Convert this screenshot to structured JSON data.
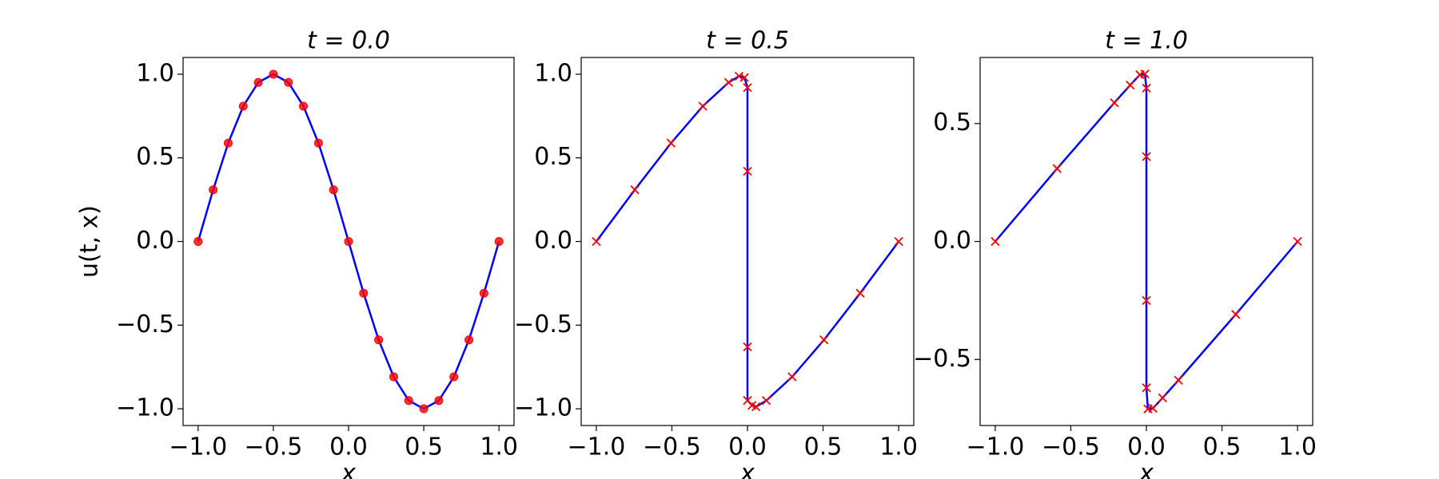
{
  "chart_data": [
    {
      "type": "line",
      "title": "t = 0.0",
      "ylabel": "u(t, x)",
      "xlabel": "x",
      "x": [
        -1,
        -0.9,
        -0.8,
        -0.7,
        -0.6,
        -0.5,
        -0.4,
        -0.3,
        -0.2,
        -0.1,
        0,
        0.1,
        0.2,
        0.3,
        0.4,
        0.5,
        0.6,
        0.7,
        0.8,
        0.9,
        1
      ],
      "series": [
        {
          "color": "#0000ff",
          "values": [
            0,
            0.309,
            0.588,
            0.809,
            0.951,
            1,
            0.951,
            0.809,
            0.588,
            0.309,
            0,
            -0.309,
            -0.588,
            -0.809,
            -0.951,
            -1,
            -0.951,
            -0.809,
            -0.588,
            -0.309,
            0
          ]
        },
        {
          "color": "#ff0000",
          "marker": "o",
          "values": [
            0,
            0.309,
            0.588,
            0.809,
            0.951,
            1,
            0.951,
            0.809,
            0.588,
            0.309,
            0,
            -0.309,
            -0.588,
            -0.809,
            -0.951,
            -1,
            -0.951,
            -0.809,
            -0.588,
            -0.309,
            0
          ]
        }
      ],
      "xlim": [
        -1.1,
        1.1
      ],
      "ylim": [
        -1.1,
        1.1
      ],
      "xticks": [
        {
          "value": -1,
          "label": "−1.0"
        },
        {
          "value": -0.5,
          "label": "−0.5"
        },
        {
          "value": 0,
          "label": "0.0"
        },
        0.5,
        {
          "value": 1,
          "label": "1.0"
        }
      ],
      "yticks": [
        {
          "value": -1,
          "label": "−1.0"
        },
        {
          "value": -0.5,
          "label": "−0.5"
        },
        {
          "value": 0,
          "label": "0.0"
        },
        0.5,
        {
          "value": 1,
          "label": "1.0"
        }
      ]
    },
    {
      "type": "line",
      "title": "t = 0.5",
      "xlabel": "x",
      "x": [
        -1,
        -0.7455,
        -0.506,
        -0.2955,
        -0.1245,
        -0.056,
        -0.02,
        0,
        0,
        0,
        0,
        0.03,
        0.056,
        0.1245,
        0.2955,
        0.506,
        0.7455,
        1
      ],
      "series": [
        {
          "color": "#0000ff",
          "values": [
            0,
            0.309,
            0.588,
            0.809,
            0.951,
            0.988,
            0.98,
            0.92,
            0.42,
            -0.63,
            -0.95,
            -0.98,
            -0.988,
            -0.951,
            -0.809,
            -0.588,
            -0.309,
            0
          ]
        },
        {
          "color": "#ff0000",
          "marker": "x",
          "values": [
            0,
            0.309,
            0.588,
            0.809,
            0.951,
            0.988,
            0.98,
            0.92,
            0.42,
            -0.63,
            -0.95,
            -0.98,
            -0.988,
            -0.951,
            -0.809,
            -0.588,
            -0.309,
            0
          ]
        }
      ],
      "xlim": [
        -1.1,
        1.1
      ],
      "ylim": [
        -1.1,
        1.1
      ],
      "xticks": [
        {
          "value": -1,
          "label": "−1.0"
        },
        {
          "value": -0.5,
          "label": "−0.5"
        },
        {
          "value": 0,
          "label": "0.0"
        },
        0.5,
        {
          "value": 1,
          "label": "1.0"
        }
      ],
      "yticks": [
        {
          "value": -1,
          "label": "−1.0"
        },
        {
          "value": -0.5,
          "label": "−0.5"
        },
        {
          "value": 0,
          "label": "0.0"
        },
        0.5,
        {
          "value": 1,
          "label": "1.0"
        }
      ]
    },
    {
      "type": "line",
      "title": "t = 1.0",
      "xlabel": "x",
      "x": [
        -1,
        -0.591,
        -0.212,
        -0.107,
        -0.043,
        -0.01,
        0,
        0,
        0,
        0,
        0.01,
        0.043,
        0.107,
        0.212,
        0.591,
        1
      ],
      "series": [
        {
          "color": "#0000ff",
          "values": [
            0,
            0.309,
            0.588,
            0.663,
            0.707,
            0.71,
            0.65,
            0.36,
            -0.25,
            -0.62,
            -0.71,
            -0.707,
            -0.663,
            -0.588,
            -0.309,
            0
          ]
        },
        {
          "color": "#ff0000",
          "marker": "x",
          "values": [
            0,
            0.309,
            0.588,
            0.663,
            0.707,
            0.71,
            0.65,
            0.36,
            -0.25,
            -0.62,
            -0.71,
            -0.707,
            -0.663,
            -0.588,
            -0.309,
            0
          ]
        }
      ],
      "xlim": [
        -1.1,
        1.1
      ],
      "ylim": [
        -0.78,
        0.78
      ],
      "xticks": [
        {
          "value": -1,
          "label": "−1.0"
        },
        {
          "value": -0.5,
          "label": "−0.5"
        },
        {
          "value": 0,
          "label": "0.0"
        },
        0.5,
        {
          "value": 1,
          "label": "1.0"
        }
      ],
      "yticks": [
        {
          "value": -0.5,
          "label": "−0.5"
        },
        {
          "value": 0,
          "label": "0.0"
        },
        0.5
      ]
    }
  ]
}
